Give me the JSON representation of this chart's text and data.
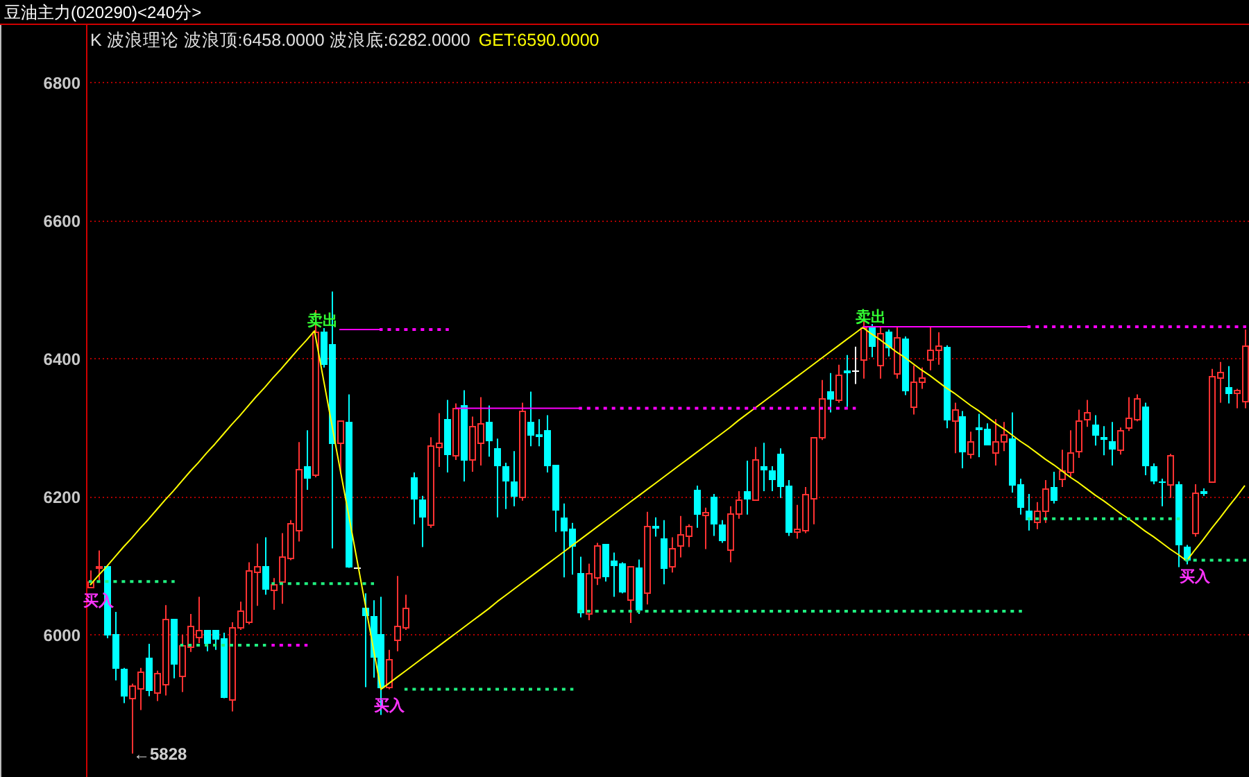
{
  "chart_data": {
    "type": "candlestick",
    "title": "豆油主力(020290)<240分>",
    "subtitle": "K 波浪理论 波浪顶:6458.0000 波浪底:6282.0000",
    "annotations": [
      "GET:6590.0000"
    ],
    "categories": [
      null,
      null,
      null,
      null,
      null,
      null,
      null,
      null,
      null,
      null,
      null,
      null,
      null,
      null,
      null,
      null,
      null,
      null,
      null,
      null,
      null,
      null,
      null,
      null,
      null,
      null,
      null,
      null,
      null,
      null,
      null,
      null,
      null,
      null,
      null,
      null,
      null,
      null,
      null,
      null,
      null,
      null,
      null,
      null,
      null,
      null,
      null,
      null,
      null,
      null,
      null,
      null,
      null,
      null,
      null,
      null,
      null,
      null,
      null,
      null,
      null,
      null,
      null,
      null,
      null,
      null,
      null,
      null,
      null,
      null,
      null,
      null,
      null,
      null,
      null,
      null,
      null,
      null,
      null,
      null,
      null,
      null,
      null,
      null,
      null,
      null,
      null,
      null,
      null,
      null,
      null,
      null,
      null,
      null,
      null,
      null,
      null,
      null,
      null,
      null,
      null,
      null,
      null,
      null,
      null,
      null,
      null,
      null,
      null,
      null,
      null,
      null,
      null,
      null,
      null,
      null,
      null,
      null,
      null,
      null,
      null,
      null,
      null,
      null,
      null,
      null,
      null,
      null,
      null,
      null,
      null,
      null,
      null,
      null,
      null,
      null,
      null,
      null,
      null,
      null
    ],
    "ohlc": [
      [
        6070,
        6093,
        6068,
        6077
      ],
      [
        6098,
        6122,
        6078,
        6100
      ],
      [
        6099,
        6100,
        5995,
        5999
      ],
      [
        6000,
        6033,
        5934,
        5951
      ],
      [
        5950,
        5952,
        5901,
        5911
      ],
      [
        5909,
        5929,
        5828,
        5926
      ],
      [
        5923,
        5952,
        5891,
        5946
      ],
      [
        5967,
        5987,
        5911,
        5919
      ],
      [
        5917,
        5948,
        5904,
        5944
      ],
      [
        5928,
        6043,
        5912,
        6023
      ],
      [
        6023,
        6023,
        5937,
        5957
      ],
      [
        5940,
        6000,
        5917,
        5984
      ],
      [
        5983,
        6030,
        5975,
        6013
      ],
      [
        5997,
        6055,
        5988,
        6006
      ],
      [
        6006,
        6006,
        5976,
        5987
      ],
      [
        6007,
        6007,
        5978,
        5993
      ],
      [
        5995,
        6003,
        5908,
        5909
      ],
      [
        5906,
        6018,
        5889,
        6010
      ],
      [
        6010,
        6048,
        6007,
        6035
      ],
      [
        6020,
        6105,
        6015,
        6093
      ],
      [
        6092,
        6132,
        6042,
        6100
      ],
      [
        6100,
        6141,
        6058,
        6066
      ],
      [
        6066,
        6082,
        6036,
        6073
      ],
      [
        6078,
        6147,
        6045,
        6113
      ],
      [
        6112,
        6166,
        6108,
        6161
      ],
      [
        6151,
        6279,
        6135,
        6241
      ],
      [
        6244,
        6296,
        6210,
        6225
      ],
      [
        6233,
        6470,
        6228,
        6439
      ],
      [
        6439,
        6444,
        6387,
        6390
      ],
      [
        6420,
        6497,
        6125,
        6277
      ],
      [
        6279,
        6310,
        6233,
        6310
      ],
      [
        6308,
        6348,
        6097,
        6097
      ],
      [
        6098,
        6098,
        6098,
        6098
      ],
      [
        6040,
        6060,
        5924,
        6027
      ],
      [
        6028,
        6050,
        5938,
        5967
      ],
      [
        6001,
        6055,
        5884,
        5922
      ],
      [
        5924,
        5978,
        5921,
        5964
      ],
      [
        5993,
        6085,
        5976,
        6013
      ],
      [
        6011,
        6058,
        6007,
        6040
      ],
      [
        6228,
        6235,
        6160,
        6196
      ],
      [
        6196,
        6201,
        6127,
        6170
      ],
      [
        6160,
        6286,
        6155,
        6274
      ],
      [
        6273,
        6321,
        6243,
        6279
      ],
      [
        6312,
        6340,
        6235,
        6261
      ],
      [
        6261,
        6335,
        6253,
        6328
      ],
      [
        6332,
        6354,
        6222,
        6252
      ],
      [
        6255,
        6316,
        6236,
        6302
      ],
      [
        6279,
        6344,
        6245,
        6306
      ],
      [
        6308,
        6332,
        6258,
        6280
      ],
      [
        6270,
        6284,
        6170,
        6244
      ],
      [
        6244,
        6249,
        6182,
        6222
      ],
      [
        6222,
        6266,
        6186,
        6200
      ],
      [
        6200,
        6336,
        6194,
        6324
      ],
      [
        6308,
        6352,
        6273,
        6288
      ],
      [
        6290,
        6312,
        6273,
        6286
      ],
      [
        6296,
        6318,
        6235,
        6244
      ],
      [
        6246,
        6246,
        6149,
        6180
      ],
      [
        6170,
        6190,
        6083,
        6150
      ],
      [
        6153,
        6162,
        6087,
        6127
      ],
      [
        6089,
        6113,
        6025,
        6032
      ],
      [
        6032,
        6103,
        6021,
        6089
      ],
      [
        6084,
        6133,
        6072,
        6129
      ],
      [
        6131,
        6131,
        6077,
        6083
      ],
      [
        6107,
        6119,
        6055,
        6099
      ],
      [
        6103,
        6105,
        6060,
        6062
      ],
      [
        6052,
        6099,
        6017,
        6099
      ],
      [
        6097,
        6109,
        6030,
        6035
      ],
      [
        6062,
        6178,
        6044,
        6157
      ],
      [
        6157,
        6170,
        6142,
        6153
      ],
      [
        6139,
        6166,
        6073,
        6095
      ],
      [
        6099,
        6141,
        6090,
        6125
      ],
      [
        6130,
        6172,
        6112,
        6145
      ],
      [
        6144,
        6160,
        6127,
        6157
      ],
      [
        6210,
        6216,
        6155,
        6174
      ],
      [
        6174,
        6184,
        6124,
        6178
      ],
      [
        6200,
        6204,
        6143,
        6160
      ],
      [
        6160,
        6166,
        6133,
        6135
      ],
      [
        6124,
        6186,
        6105,
        6176
      ],
      [
        6176,
        6208,
        6168,
        6196
      ],
      [
        6208,
        6252,
        6174,
        6196
      ],
      [
        6196,
        6272,
        6196,
        6254
      ],
      [
        6244,
        6278,
        6208,
        6238
      ],
      [
        6238,
        6244,
        6208,
        6224
      ],
      [
        6262,
        6270,
        6198,
        6214
      ],
      [
        6216,
        6224,
        6143,
        6147
      ],
      [
        6150,
        6188,
        6139,
        6153
      ],
      [
        6151,
        6214,
        6147,
        6204
      ],
      [
        6197,
        6286,
        6160,
        6286
      ],
      [
        6286,
        6369,
        6282,
        6342
      ],
      [
        6352,
        6379,
        6322,
        6340
      ],
      [
        6340,
        6391,
        6336,
        6377
      ],
      [
        6383,
        6405,
        6330,
        6379
      ],
      [
        6382,
        6417,
        6363,
        6382
      ],
      [
        6399,
        6458,
        6371,
        6445
      ],
      [
        6445,
        6450,
        6402,
        6417
      ],
      [
        6391,
        6445,
        6371,
        6437
      ],
      [
        6439,
        6442,
        6403,
        6415
      ],
      [
        6379,
        6445,
        6371,
        6430
      ],
      [
        6429,
        6432,
        6347,
        6353
      ],
      [
        6330,
        6390,
        6319,
        6367
      ],
      [
        6367,
        6387,
        6356,
        6372
      ],
      [
        6399,
        6445,
        6383,
        6412
      ],
      [
        6413,
        6438,
        6391,
        6418
      ],
      [
        6417,
        6419,
        6299,
        6311
      ],
      [
        6311,
        6336,
        6263,
        6326
      ],
      [
        6316,
        6324,
        6241,
        6265
      ],
      [
        6263,
        6294,
        6255,
        6280
      ],
      [
        6300,
        6320,
        6257,
        6297
      ],
      [
        6298,
        6306,
        6275,
        6275
      ],
      [
        6265,
        6312,
        6245,
        6280
      ],
      [
        6281,
        6308,
        6266,
        6290
      ],
      [
        6284,
        6322,
        6206,
        6216
      ],
      [
        6218,
        6226,
        6174,
        6184
      ],
      [
        6180,
        6204,
        6151,
        6166
      ],
      [
        6164,
        6192,
        6153,
        6180
      ],
      [
        6180,
        6224,
        6162,
        6212
      ],
      [
        6214,
        6236,
        6190,
        6194
      ],
      [
        6225,
        6268,
        6214,
        6239
      ],
      [
        6237,
        6296,
        6229,
        6264
      ],
      [
        6267,
        6326,
        6256,
        6310
      ],
      [
        6312,
        6340,
        6301,
        6322
      ],
      [
        6304,
        6318,
        6274,
        6289
      ],
      [
        6287,
        6302,
        6260,
        6283
      ],
      [
        6281,
        6308,
        6245,
        6269
      ],
      [
        6269,
        6300,
        6261,
        6296
      ],
      [
        6301,
        6344,
        6295,
        6314
      ],
      [
        6313,
        6348,
        6309,
        6342
      ],
      [
        6330,
        6336,
        6231,
        6245
      ],
      [
        6244,
        6248,
        6218,
        6222
      ],
      [
        6222,
        6226,
        6186,
        6219
      ],
      [
        6218,
        6262,
        6198,
        6260
      ],
      [
        6218,
        6222,
        6098,
        6129
      ],
      [
        6127,
        6130,
        6102,
        6107
      ],
      [
        6147,
        6218,
        6142,
        6206
      ],
      [
        6207,
        6212,
        6201,
        6204
      ],
      [
        6222,
        6385,
        6222,
        6375
      ],
      [
        6373,
        6395,
        6336,
        6380
      ],
      [
        6358,
        6389,
        6335,
        6349
      ],
      [
        6350,
        6356,
        6328,
        6354
      ],
      [
        6338,
        6442,
        6328,
        6418
      ]
    ],
    "value_labels": [
      null,
      null,
      null,
      null,
      null,
      "←5828",
      null,
      null,
      null,
      null,
      null,
      null,
      null,
      null,
      null,
      null,
      null,
      null,
      null,
      null,
      null,
      null,
      null,
      null,
      null,
      null,
      null,
      null,
      null,
      null,
      null,
      null,
      null,
      null,
      null,
      null,
      null,
      null,
      null,
      null,
      null,
      null,
      null,
      null,
      null,
      null,
      null,
      null,
      null,
      null,
      null,
      null,
      null,
      null,
      null,
      null,
      null,
      null,
      null,
      null,
      null,
      null,
      null,
      null,
      null,
      null,
      null,
      null,
      null,
      null,
      null,
      null,
      null,
      null,
      null,
      null,
      null,
      null,
      null,
      null,
      null,
      null,
      null,
      null,
      null,
      null,
      null,
      null,
      null,
      null,
      null,
      null,
      null,
      null,
      null,
      null,
      null,
      null,
      null,
      null,
      null,
      null,
      null,
      null,
      null,
      null,
      null,
      null,
      null,
      null,
      null,
      null,
      null,
      null,
      null,
      null,
      null,
      null,
      null,
      null,
      null,
      null,
      null,
      null,
      null,
      null,
      null,
      null,
      null,
      null,
      null,
      null,
      null,
      null,
      null,
      null,
      null,
      null,
      null,
      null
    ],
    "colors": [
      "#ff3232",
      "#ff3232",
      "#00ffff",
      "#00ffff",
      "#00ffff",
      "#ff3232",
      "#ff3232",
      "#00ffff",
      "#ff3232",
      "#ff3232",
      "#00ffff",
      "#ff3232",
      "#ff3232",
      "#ff3232",
      "#00ffff",
      "#00ffff",
      "#00ffff",
      "#ff3232",
      "#ff3232",
      "#ff3232",
      "#ff3232",
      "#00ffff",
      "#ff3232",
      "#ff3232",
      "#ff3232",
      "#ff3232",
      "#00ffff",
      "#ff3232",
      "#00ffff",
      "#00ffff",
      "#ff3232",
      "#00ffff",
      "#ffffff",
      "#00ffff",
      "#00ffff",
      "#00ffff",
      "#ff3232",
      "#ff3232",
      "#ff3232",
      "#00ffff",
      "#00ffff",
      "#ff3232",
      "#ff3232",
      "#00ffff",
      "#ff3232",
      "#00ffff",
      "#ff3232",
      "#ff3232",
      "#00ffff",
      "#00ffff",
      "#00ffff",
      "#00ffff",
      "#ff3232",
      "#00ffff",
      "#00ffff",
      "#00ffff",
      "#00ffff",
      "#00ffff",
      "#00ffff",
      "#00ffff",
      "#ff3232",
      "#ff3232",
      "#00ffff",
      "#00ffff",
      "#00ffff",
      "#ff3232",
      "#00ffff",
      "#ff3232",
      "#00ffff",
      "#00ffff",
      "#ff3232",
      "#ff3232",
      "#ff3232",
      "#00ffff",
      "#ff3232",
      "#00ffff",
      "#00ffff",
      "#ff3232",
      "#ff3232",
      "#00ffff",
      "#ff3232",
      "#00ffff",
      "#00ffff",
      "#00ffff",
      "#00ffff",
      "#ff3232",
      "#ff3232",
      "#ff3232",
      "#ff3232",
      "#00ffff",
      "#ff3232",
      "#00ffff",
      "#ffffff",
      "#ff3232",
      "#00ffff",
      "#ff3232",
      "#00ffff",
      "#ff3232",
      "#00ffff",
      "#ff3232",
      "#ff3232",
      "#ff3232",
      "#ff3232",
      "#00ffff",
      "#ff3232",
      "#00ffff",
      "#ff3232",
      "#00ffff",
      "#00ffff",
      "#ff3232",
      "#ff3232",
      "#00ffff",
      "#00ffff",
      "#00ffff",
      "#ff3232",
      "#ff3232",
      "#00ffff",
      "#ff3232",
      "#ff3232",
      "#ff3232",
      "#ff3232",
      "#00ffff",
      "#00ffff",
      "#00ffff",
      "#ff3232",
      "#ff3232",
      "#ff3232",
      "#00ffff",
      "#00ffff",
      "#00ffff",
      "#ff3232",
      "#00ffff",
      "#00ffff",
      "#ff3232",
      "#00ffff",
      "#ff3232",
      "#ff3232",
      "#00ffff",
      "#ff3232",
      "#ff3232"
    ],
    "ylim": [
      5794,
      6885
    ],
    "yticks": [
      6000,
      6200,
      6400,
      6600,
      6800
    ],
    "grid": "y",
    "series": [
      {
        "type": "line",
        "color": "#ffff00",
        "values": [
          6072,
          6086,
          6099,
          6113,
          6127,
          6140,
          6154,
          6167,
          6181,
          6195,
          6208,
          6222,
          6236,
          6249,
          6263,
          6276,
          6290,
          6304,
          6317,
          6331,
          6345,
          6358,
          6372,
          6385,
          6399,
          6413,
          6426,
          6440,
          6375,
          6310,
          6245,
          6181,
          6116,
          6051,
          5986,
          5921,
          5930,
          5939,
          5948,
          5957,
          5966,
          5975,
          5984,
          5993,
          6002,
          6011,
          6020,
          6029,
          6038,
          6048,
          6057,
          6066,
          6075,
          6084,
          6093,
          6102,
          6111,
          6120,
          6129,
          6138,
          6147,
          6156,
          6165,
          6174,
          6183,
          6192,
          6201,
          6210,
          6219,
          6228,
          6237,
          6246,
          6255,
          6264,
          6273,
          6282,
          6291,
          6300,
          6310,
          6319,
          6328,
          6337,
          6346,
          6355,
          6364,
          6373,
          6382,
          6391,
          6400,
          6409,
          6418,
          6427,
          6436,
          6445,
          6436,
          6428,
          6419,
          6410,
          6402,
          6393,
          6384,
          6376,
          6367,
          6358,
          6350,
          6341,
          6332,
          6324,
          6315,
          6306,
          6298,
          6289,
          6280,
          6272,
          6263,
          6254,
          6246,
          6237,
          6228,
          6220,
          6211,
          6202,
          6194,
          6185,
          6176,
          6168,
          6159,
          6150,
          6142,
          6133,
          6124,
          6116,
          6107,
          6123,
          6138,
          6154,
          6169,
          6185,
          6200,
          6216
        ],
        "value_labels": [
          "买入",
          null,
          null,
          null,
          null,
          null,
          null,
          null,
          null,
          null,
          null,
          null,
          null,
          null,
          null,
          null,
          null,
          null,
          null,
          null,
          null,
          null,
          null,
          null,
          null,
          null,
          null,
          "卖出",
          null,
          null,
          null,
          null,
          null,
          null,
          null,
          "买入",
          null,
          null,
          null,
          null,
          null,
          null,
          null,
          null,
          null,
          null,
          null,
          null,
          null,
          null,
          null,
          null,
          null,
          null,
          null,
          null,
          null,
          null,
          null,
          null,
          null,
          null,
          null,
          null,
          null,
          null,
          null,
          null,
          null,
          null,
          null,
          null,
          null,
          null,
          null,
          null,
          null,
          null,
          null,
          null,
          null,
          null,
          null,
          null,
          null,
          null,
          null,
          null,
          null,
          null,
          null,
          null,
          null,
          "卖出",
          null,
          null,
          null,
          null,
          null,
          null,
          null,
          null,
          null,
          null,
          null,
          null,
          null,
          null,
          null,
          null,
          null,
          null,
          null,
          null,
          null,
          null,
          null,
          null,
          null,
          null,
          null,
          null,
          null,
          null,
          null,
          null,
          null,
          null,
          null,
          null,
          null,
          null,
          "买入",
          null,
          null,
          null,
          null,
          null,
          null,
          null
        ]
      },
      {
        "type": "line",
        "color": "#20f080",
        "line_style": "dotted",
        "values": [
          6077,
          6077,
          6077,
          6077,
          6077,
          6077,
          6077,
          6077,
          6077,
          6077,
          6077,
          null,
          null,
          null,
          null,
          null,
          null,
          null,
          null,
          null,
          null,
          null,
          6074,
          6074,
          6074,
          6074,
          6074,
          6074,
          6074,
          6074,
          6074,
          6074,
          6074,
          6074,
          6074,
          null,
          null,
          null,
          null,
          null,
          null,
          null,
          null,
          null,
          null,
          null,
          null,
          null,
          null,
          null,
          null,
          null,
          null,
          null,
          null,
          null,
          null,
          null,
          null,
          6034,
          6034,
          6034,
          6034,
          6034,
          6034,
          6034,
          6034,
          6034,
          6034,
          6034,
          6034,
          6034,
          6034,
          6034,
          6034,
          6034,
          6034,
          6034,
          6034,
          6034,
          6034,
          6034,
          6034,
          6034,
          6034,
          6034,
          6034,
          6034,
          6034,
          6034,
          6034,
          6034,
          6034,
          6034,
          6034,
          6034,
          6034,
          6034,
          6034,
          6034,
          6034,
          6034,
          6034,
          6034,
          6034,
          6034,
          6034,
          6034,
          6034,
          6034,
          6034,
          6034,
          6034,
          null,
          null,
          null,
          null,
          null,
          null,
          null,
          null,
          null,
          null,
          null,
          null,
          null,
          null,
          null,
          null,
          null,
          null,
          null,
          6108,
          6108,
          6108,
          6108,
          6108,
          6108,
          6108,
          6108
        ]
      },
      {
        "type": "line",
        "color": "#20f080",
        "line_style": "dotted",
        "values": [
          null,
          null,
          null,
          null,
          null,
          null,
          null,
          null,
          null,
          null,
          null,
          5985,
          5985,
          5985,
          5985,
          5985,
          5985,
          5985,
          5985,
          5985,
          5985,
          5985,
          null,
          null,
          null,
          null,
          null,
          null,
          null,
          null,
          null,
          null,
          null,
          null,
          null,
          null,
          null,
          null,
          5921,
          5921,
          5921,
          5921,
          5921,
          5921,
          5921,
          5921,
          5921,
          5921,
          5921,
          5921,
          5921,
          5921,
          5921,
          5921,
          5921,
          5921,
          5921,
          5921,
          5921,
          null,
          null,
          null,
          null,
          null,
          null,
          null,
          null,
          null,
          null,
          null,
          null,
          null,
          null,
          null,
          null,
          null,
          null,
          null,
          null,
          null,
          null,
          null,
          null,
          null,
          null,
          null,
          null,
          null,
          null,
          null,
          null,
          null,
          null,
          null,
          null,
          null,
          null,
          null,
          null,
          null,
          null,
          null,
          null,
          null,
          null,
          null,
          null,
          null,
          null,
          null,
          null,
          null,
          null,
          6168,
          6168,
          6168,
          6168,
          6168,
          6168,
          6168,
          6168,
          6168,
          6168,
          6168,
          6168,
          6168,
          6168,
          6168,
          6168,
          6168,
          6168,
          6168,
          null,
          null,
          null,
          null,
          null,
          null,
          null,
          null
        ]
      },
      {
        "type": "line",
        "color": "#ff00ff",
        "line_style": "dotted",
        "values": [
          null,
          null,
          null,
          null,
          null,
          null,
          null,
          null,
          null,
          null,
          null,
          null,
          null,
          null,
          null,
          null,
          null,
          null,
          null,
          null,
          null,
          null,
          5985,
          5985,
          5985,
          5985,
          5985,
          null,
          null,
          null,
          null,
          null,
          null,
          null,
          null,
          6442,
          6442,
          6442,
          6442,
          6442,
          6442,
          6442,
          6442,
          6442,
          null,
          null,
          null,
          null,
          null,
          null,
          null,
          null,
          null,
          null,
          null,
          null,
          null,
          null,
          null,
          6328,
          6328,
          6328,
          6328,
          6328,
          6328,
          6328,
          6328,
          6328,
          6328,
          6328,
          6328,
          6328,
          6328,
          6328,
          6328,
          6328,
          6328,
          6328,
          6328,
          6328,
          6328,
          6328,
          6328,
          6328,
          6328,
          6328,
          6328,
          6328,
          6328,
          6328,
          6328,
          6328,
          6328,
          null,
          null,
          null,
          null,
          null,
          null,
          null,
          null,
          null,
          null,
          null,
          null,
          null,
          null,
          null,
          null,
          null,
          null,
          null,
          null,
          6446,
          6446,
          6446,
          6446,
          6446,
          6446,
          6446,
          6446,
          6446,
          6446,
          6446,
          6446,
          6446,
          6446,
          6446,
          6446,
          6446,
          6446,
          6446,
          6446,
          6446,
          6446,
          6446,
          6446,
          6446,
          6446,
          6446
        ]
      },
      {
        "type": "line",
        "color": "#ff00ff",
        "values": [
          null,
          null,
          null,
          null,
          null,
          null,
          null,
          null,
          null,
          null,
          null,
          null,
          null,
          null,
          null,
          null,
          null,
          null,
          null,
          null,
          null,
          null,
          null,
          null,
          null,
          null,
          null,
          null,
          null,
          null,
          6442,
          6442,
          6442,
          6442,
          6442,
          6442,
          null,
          null,
          null,
          null,
          null,
          null,
          null,
          null,
          6328,
          6328,
          6328,
          6328,
          6328,
          6328,
          6328,
          6328,
          6328,
          6328,
          6328,
          6328,
          6328,
          6328,
          6328,
          6328,
          null,
          null,
          null,
          null,
          null,
          null,
          null,
          null,
          null,
          null,
          null,
          null,
          null,
          null,
          null,
          null,
          null,
          null,
          null,
          null,
          null,
          null,
          null,
          null,
          null,
          null,
          null,
          null,
          null,
          null,
          null,
          null,
          null,
          6446,
          6446,
          6446,
          6446,
          6446,
          6446,
          6446,
          6446,
          6446,
          6446,
          6446,
          6446,
          6446,
          6446,
          6446,
          6446,
          6446,
          6446,
          6446,
          6446,
          6446,
          null,
          null,
          null,
          null,
          null,
          null,
          null,
          null,
          null,
          null,
          null,
          null,
          null,
          null,
          null,
          null,
          null,
          null,
          null,
          null,
          null,
          null,
          null,
          null,
          null,
          null
        ]
      }
    ]
  }
}
